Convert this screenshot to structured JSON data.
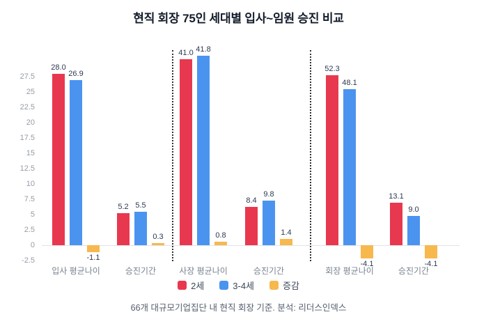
{
  "chart_data": {
    "type": "bar",
    "title": "현직 회장 75인 세대별 입사~임원 승진 비교",
    "categories": [
      "입사 평균나이",
      "승진기간",
      "사장 평균나이",
      "승진기간",
      "회장 평균나이",
      "승진기간"
    ],
    "series": [
      {
        "name": "2세",
        "color": "#e8384f",
        "values": [
          28.0,
          5.2,
          41.0,
          8.4,
          52.3,
          13.1
        ]
      },
      {
        "name": "3-4세",
        "color": "#4a94f0",
        "values": [
          26.9,
          5.5,
          41.8,
          9.8,
          48.1,
          9.0
        ]
      },
      {
        "name": "증감",
        "color": "#f7b84e",
        "values": [
          -1.1,
          0.3,
          0.8,
          1.4,
          -4.1,
          -4.1
        ]
      }
    ],
    "y_ticks": [
      -2.5,
      0,
      2.5,
      5,
      7.5,
      10,
      12.5,
      15,
      17.5,
      20,
      22.5,
      25,
      27.5
    ],
    "ylim": [
      -2.5,
      27.5
    ],
    "grid": "zero-line-only",
    "legend_position": "bottom",
    "panel_dividers": "dotted vertical lines after category 2 and category 4",
    "panel_display_scales": [
      1,
      1,
      0.74,
      0.74,
      0.53,
      0.53
    ],
    "footnote": "66개 대규모기업집단 내 현직 회장 기준. 분석: 리더스인덱스"
  }
}
